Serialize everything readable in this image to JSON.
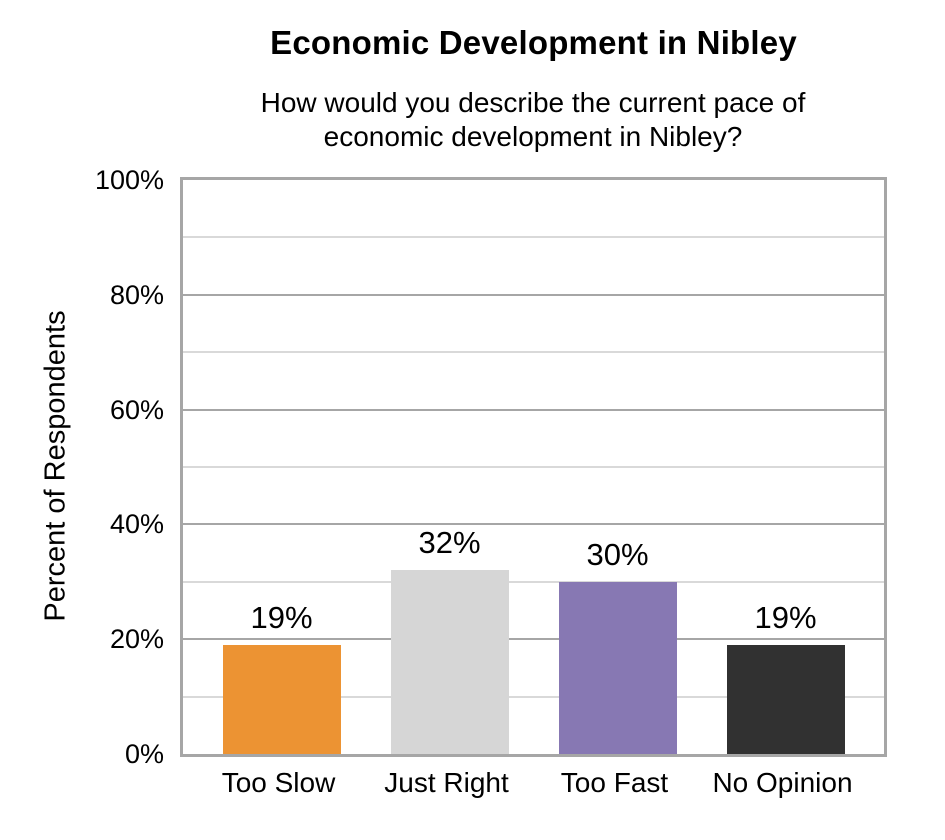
{
  "chart_data": {
    "type": "bar",
    "title": "Economic Development in Nibley",
    "subtitle_lines": [
      "How would you describe the current pace of",
      "economic development in Nibley?"
    ],
    "ylabel": "Percent of Respondents",
    "categories": [
      "Too Slow",
      "Just Right",
      "Too Fast",
      "No Opinion"
    ],
    "values": [
      19,
      32,
      30,
      19
    ],
    "value_labels": [
      "19%",
      "32%",
      "30%",
      "19%"
    ],
    "bar_colors": [
      "#EC9333",
      "#D6D6D6",
      "#8778B3",
      "#313131"
    ],
    "value_label_color": "#000000",
    "value_label_background": "#FFFFFF",
    "ylim": [
      0,
      100
    ],
    "ytick_labels": [
      "0%",
      "20%",
      "40%",
      "60%",
      "80%",
      "100%"
    ],
    "ytick_values": [
      0,
      20,
      40,
      60,
      80,
      100
    ],
    "grid": {
      "minor_step": 10,
      "major_step": 20,
      "minor_color": "#D9D9D9",
      "major_color": "#A6A6A6"
    },
    "plot_border_color": "#A6A6A6",
    "legend": "none",
    "text_color": "#000000"
  }
}
